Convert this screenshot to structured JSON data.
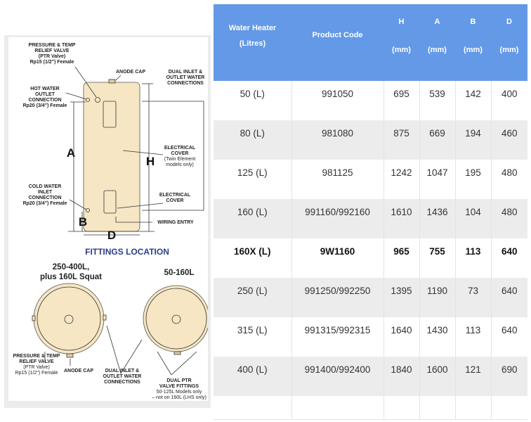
{
  "diagram": {
    "labels": {
      "ptr_top": [
        "PRESSURE & TEMP",
        "RELIEF VALVE",
        "(PTR Valve)",
        "Rp15 (1/2\") Female"
      ],
      "anode_cap": "ANODE CAP",
      "dual_inlet": [
        "DUAL INLET &",
        "OUTLET WATER",
        "CONNECTIONS"
      ],
      "hot_water": [
        "HOT WATER",
        "OUTLET",
        "CONNECTION",
        "Rp20 (3/4\") Female"
      ],
      "electrical_cover_twin": [
        "ELECTRICAL",
        "COVER",
        "(Twin Element",
        "models only)"
      ],
      "cold_water": [
        "COLD WATER",
        "INLET",
        "CONNECTION",
        "Rp20 (3/4\") Female"
      ],
      "electrical_cover": [
        "ELECTRICAL",
        "COVER"
      ],
      "wiring_entry": "WIRING ENTRY",
      "dim_a": "A",
      "dim_h": "H",
      "dim_b": "B",
      "dim_d": "D",
      "fittings_title": "FITTINGS LOCATION",
      "large_title": [
        "250-400L,",
        "plus 160L Squat"
      ],
      "small_title": "50-160L",
      "ptr_bottom": [
        "PRESSURE & TEMP",
        "RELIEF VALVE",
        "(PTR Valve)",
        "Rp15 (1/2\") Female"
      ],
      "anode_cap_bottom": "ANODE CAP",
      "dual_inlet_bottom": [
        "DUAL INLET &",
        "OUTLET WATER",
        "CONNECTIONS"
      ],
      "dual_ptr": [
        "DUAL PTR",
        "VALVE FITTINGS",
        "50-125L Models only",
        "– not on 160L (LHS only)"
      ]
    },
    "colors": {
      "tank": "#f6e6c4",
      "title": "#2d3e8c"
    }
  },
  "table": {
    "header_color": "#6399e6",
    "headers": [
      {
        "label": "Water Heater",
        "sub": "(Litres)"
      },
      {
        "label": "Product Code"
      },
      {
        "label": "H",
        "sub": "(mm)"
      },
      {
        "label": "A",
        "sub": "(mm)"
      },
      {
        "label": "B",
        "sub": "(mm)"
      },
      {
        "label": "D",
        "sub": "(mm)"
      }
    ],
    "rows": [
      [
        "50 (L)",
        "991050",
        "695",
        "539",
        "142",
        "400"
      ],
      [
        "80 (L)",
        "981080",
        "875",
        "669",
        "194",
        "460"
      ],
      [
        "125 (L)",
        "981125",
        "1242",
        "1047",
        "195",
        "480"
      ],
      [
        "160 (L)",
        "991160/992160",
        "1610",
        "1436",
        "104",
        "480"
      ],
      [
        "160X (L)",
        "9W1160",
        "965",
        "755",
        "113",
        "640"
      ],
      [
        "250 (L)",
        "991250/992250",
        "1395",
        "1190",
        "73",
        "640"
      ],
      [
        "315 (L)",
        "991315/992315",
        "1640",
        "1430",
        "113",
        "640"
      ],
      [
        "400 (L)",
        "991400/992400",
        "1840",
        "1600",
        "121",
        "690"
      ]
    ]
  }
}
